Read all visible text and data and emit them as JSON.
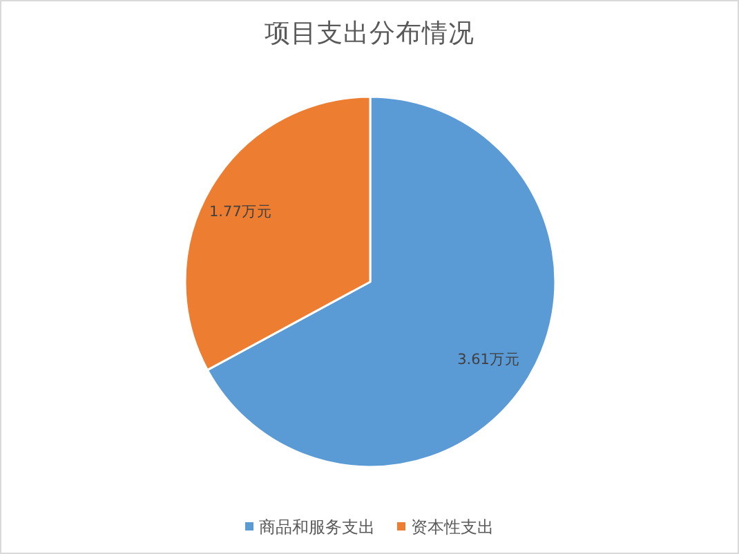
{
  "chart_data": {
    "type": "pie",
    "title": "项目支出分布情况",
    "categories": [
      "商品和服务支出",
      "资本性支出"
    ],
    "values": [
      3.61,
      1.77
    ],
    "value_labels": [
      "3.61万元",
      "1.77万元"
    ],
    "colors": [
      "#5b9bd5",
      "#ed7d31"
    ],
    "legend": "bottom"
  }
}
